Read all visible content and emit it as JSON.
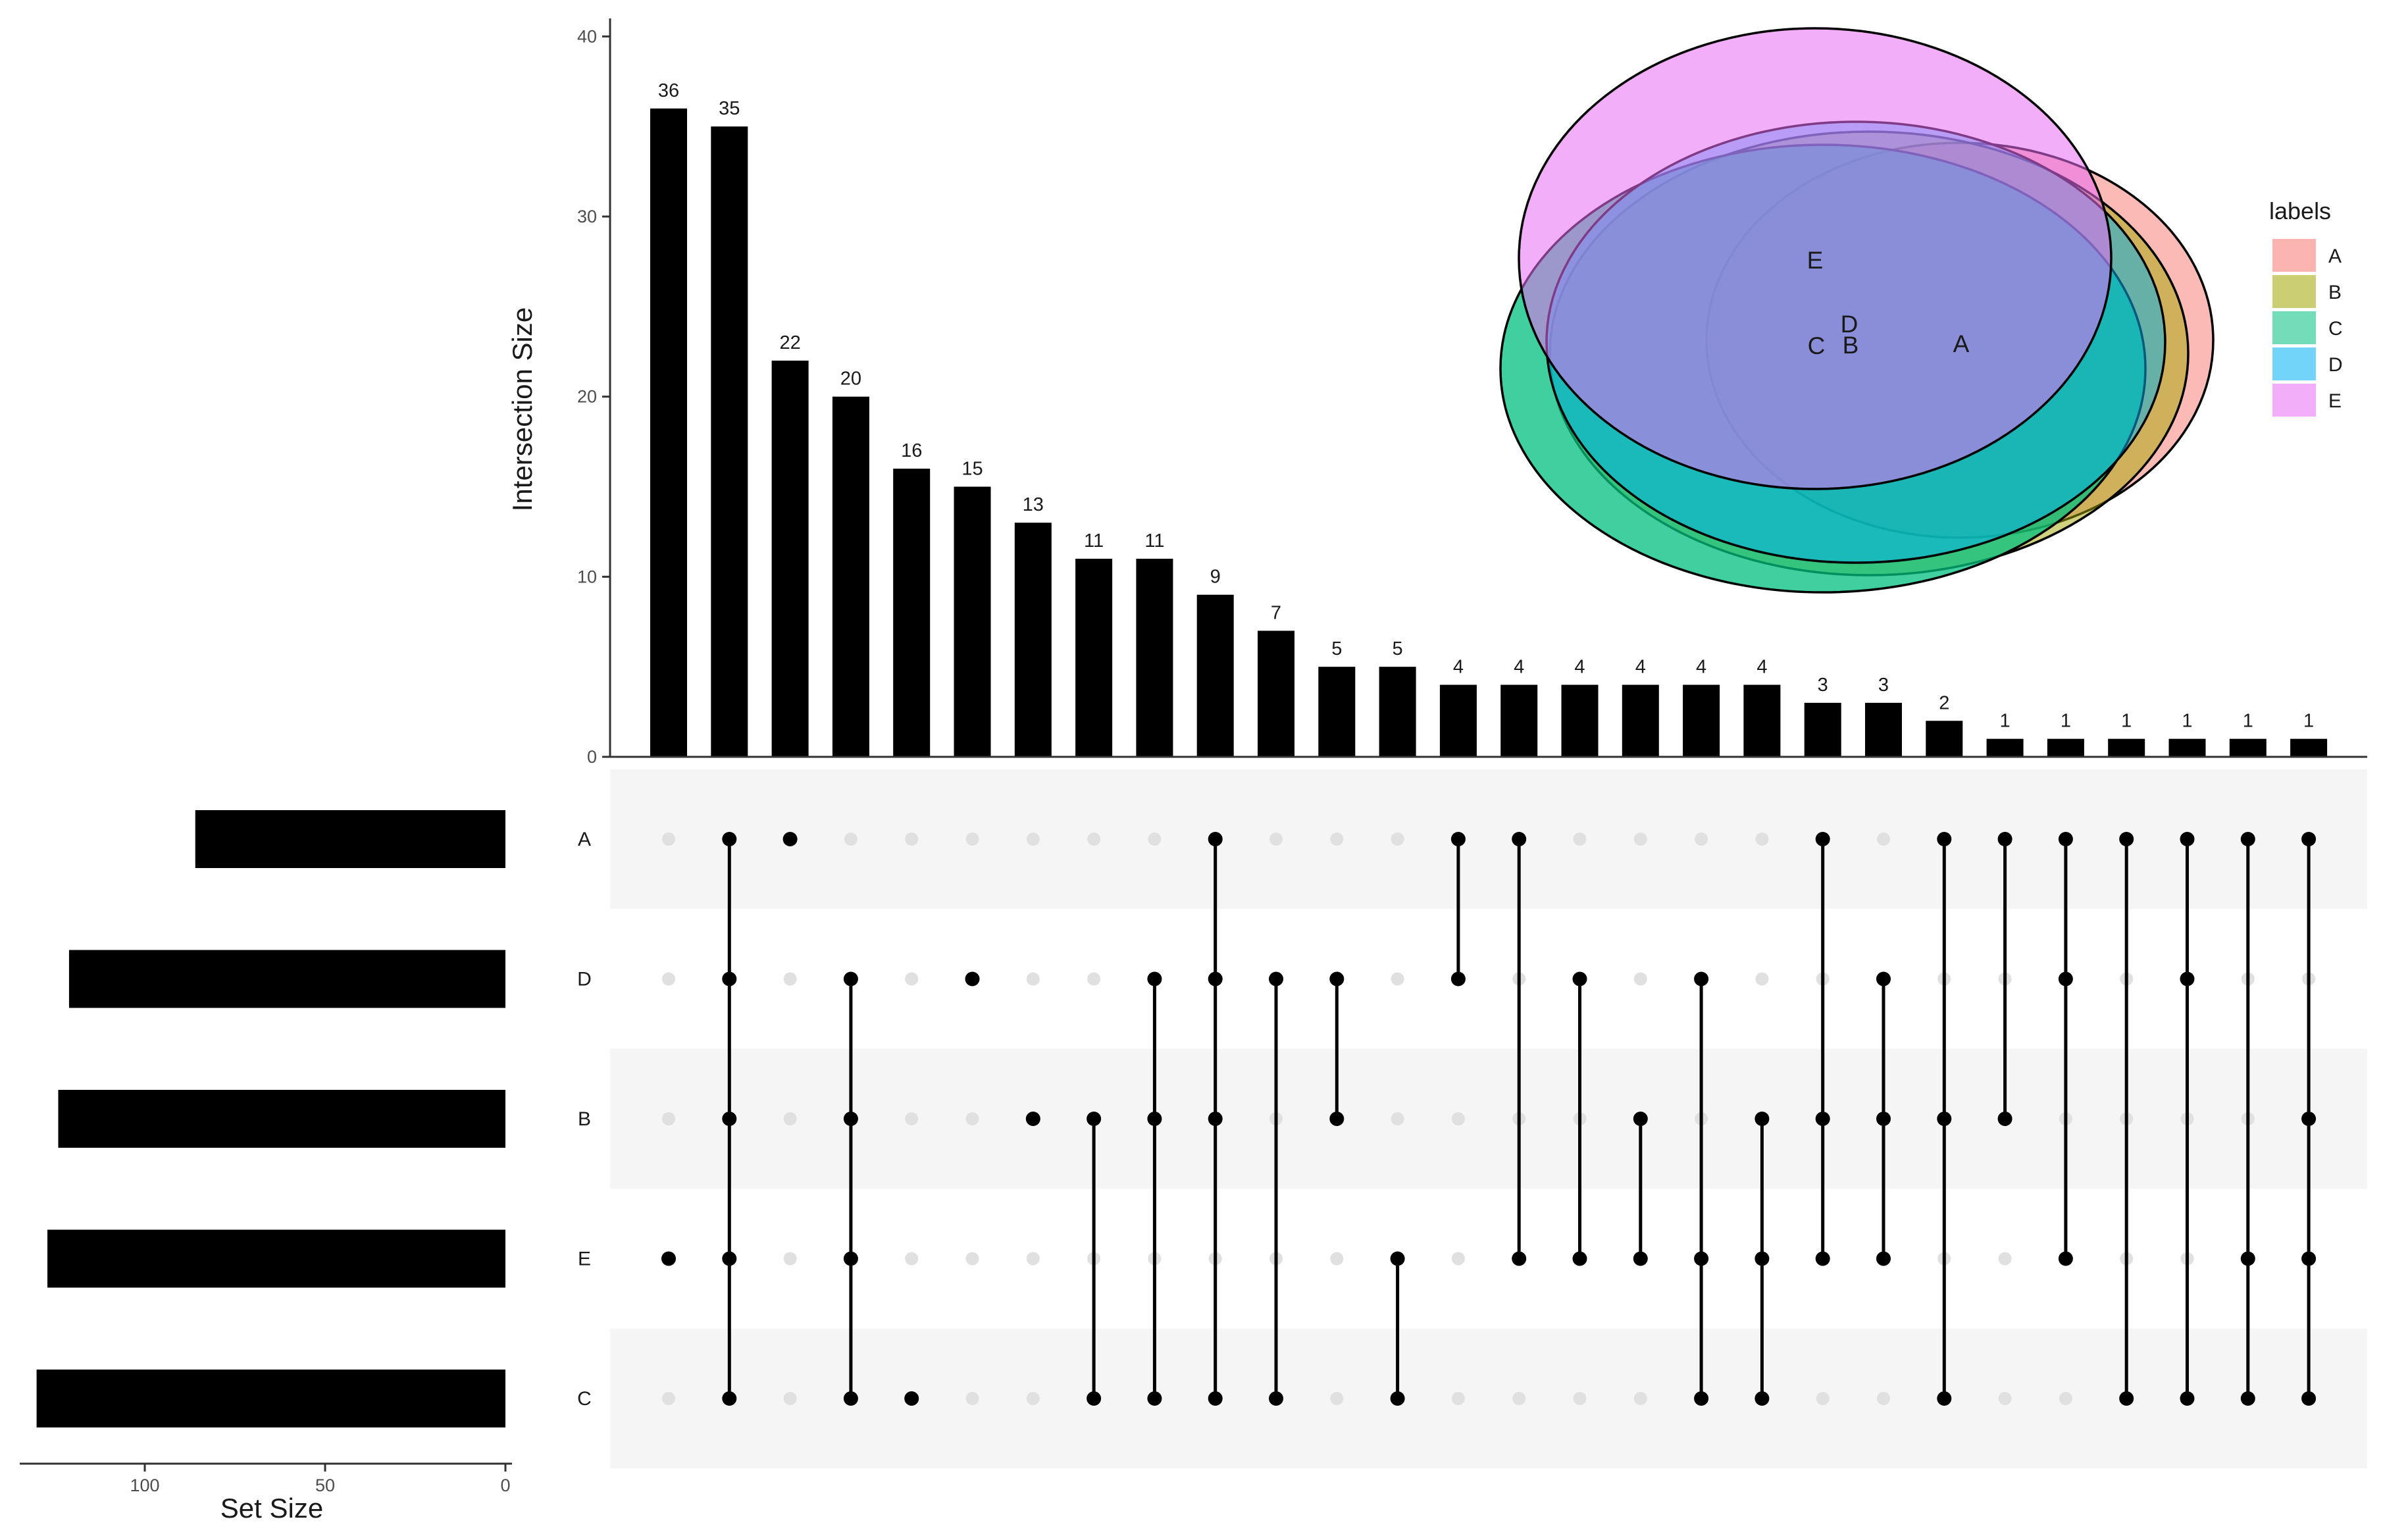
{
  "chart_data": {
    "type": "bar",
    "subtype": "upset",
    "title": "",
    "ylabel": "Intersection Size",
    "ylim": [
      0,
      41
    ],
    "yticks": [
      0,
      10,
      20,
      30,
      40
    ],
    "bar_values": [
      36,
      35,
      22,
      20,
      16,
      15,
      13,
      11,
      11,
      9,
      7,
      5,
      5,
      4,
      4,
      4,
      4,
      4,
      4,
      3,
      3,
      2,
      1,
      1,
      1,
      1,
      1,
      1
    ],
    "sets": [
      "A",
      "D",
      "B",
      "E",
      "C"
    ],
    "intersections": [
      [
        "E"
      ],
      [
        "A",
        "D",
        "B",
        "E",
        "C"
      ],
      [
        "A"
      ],
      [
        "D",
        "B",
        "E",
        "C"
      ],
      [
        "C"
      ],
      [
        "D"
      ],
      [
        "B"
      ],
      [
        "B",
        "C"
      ],
      [
        "D",
        "B",
        "C"
      ],
      [
        "A",
        "D",
        "B",
        "C"
      ],
      [
        "D",
        "C"
      ],
      [
        "D",
        "B"
      ],
      [
        "E",
        "C"
      ],
      [
        "A",
        "D"
      ],
      [
        "A",
        "E"
      ],
      [
        "D",
        "E"
      ],
      [
        "B",
        "E"
      ],
      [
        "D",
        "E",
        "C"
      ],
      [
        "B",
        "E",
        "C"
      ],
      [
        "A",
        "B",
        "E"
      ],
      [
        "D",
        "B",
        "E"
      ],
      [
        "A",
        "B",
        "C"
      ],
      [
        "A",
        "B"
      ],
      [
        "A",
        "D",
        "E"
      ],
      [
        "A",
        "C"
      ],
      [
        "A",
        "D",
        "C"
      ],
      [
        "A",
        "E",
        "C"
      ],
      [
        "A",
        "B",
        "E",
        "C"
      ]
    ],
    "set_size_label": "Set Size",
    "set_sizes": [
      86,
      121,
      124,
      127,
      130
    ],
    "set_size_xlim": [
      138,
      0
    ],
    "set_size_ticks": [
      100,
      50,
      0
    ],
    "venn": {
      "legend_title": "labels",
      "sets": [
        {
          "name": "A",
          "color": "#F8766D"
        },
        {
          "name": "B",
          "color": "#A3A500"
        },
        {
          "name": "C",
          "color": "#00BF7D"
        },
        {
          "name": "D",
          "color": "#00B0F6"
        },
        {
          "name": "E",
          "color": "#E76BF3"
        }
      ]
    },
    "colors": {
      "bar": "#000000",
      "dot_active": "#000000",
      "dot_inactive": "#e0e0e0",
      "stripe": "#f5f5f5"
    }
  }
}
